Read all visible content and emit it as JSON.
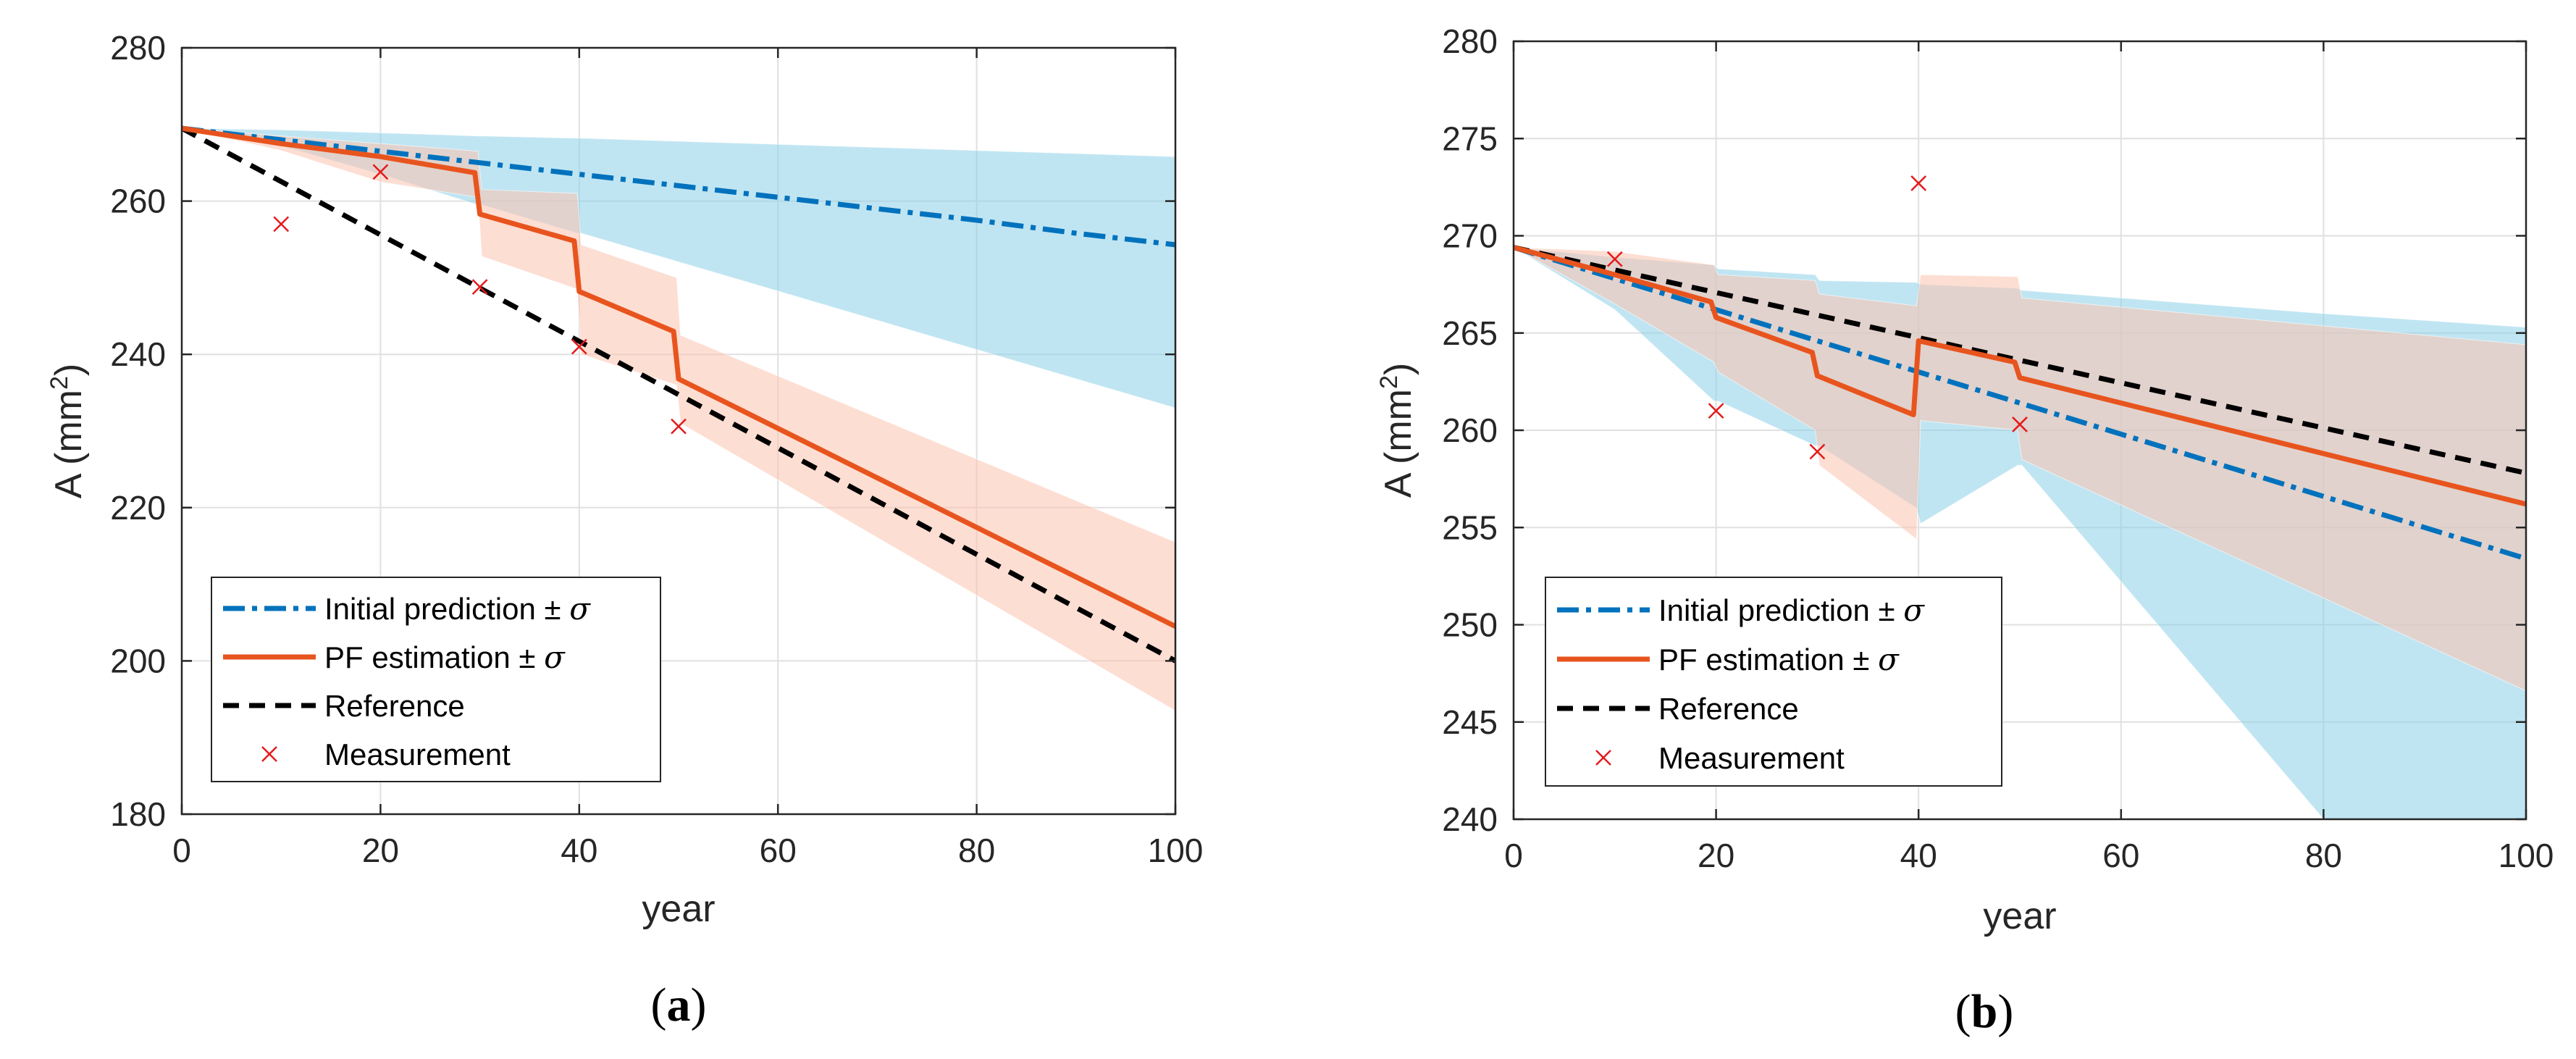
{
  "colors": {
    "initial": "#0072BD",
    "initial_band": "#8ccfe8",
    "pf": "#E8541E",
    "pf_band": "#fcc3ae",
    "reference": "#000000",
    "measurement": "#e41a1c",
    "grid": "#e0e0e0",
    "axis": "#262626"
  },
  "chart_data": [
    {
      "type": "line",
      "panel_caption_open": "(",
      "panel_caption_letter": "a",
      "panel_caption_close": ")",
      "xlabel": "year",
      "ylabel_base": "A (mm",
      "ylabel_sup": "2",
      "ylabel_close": ")",
      "xlim": [
        0,
        100
      ],
      "ylim": [
        180,
        280
      ],
      "xticks": [
        0,
        20,
        40,
        60,
        80,
        100
      ],
      "xtick_labels": [
        "0",
        "20",
        "40",
        "60",
        "80",
        "100"
      ],
      "yticks": [
        180,
        200,
        220,
        240,
        260,
        280
      ],
      "ytick_labels": [
        "180",
        "200",
        "220",
        "240",
        "260",
        "280"
      ],
      "grid": true,
      "legend_position": "bottom-left",
      "legend": [
        {
          "label": "Initial prediction ± ",
          "sym": "σ",
          "style": "dashdot"
        },
        {
          "label": "PF estimation ± ",
          "sym": "σ",
          "style": "solid"
        },
        {
          "label": "Reference",
          "sym": "",
          "style": "dashed"
        },
        {
          "label": "Measurement",
          "sym": "",
          "style": "marker"
        }
      ],
      "series": [
        {
          "name": "Initial prediction",
          "x": [
            0,
            10,
            20,
            30,
            40,
            50,
            60,
            70,
            80,
            90,
            100
          ],
          "y": [
            269.5,
            268,
            266.5,
            265,
            263.5,
            262,
            260.5,
            259,
            257.5,
            255.8,
            254.3
          ],
          "band_x": [
            0,
            10,
            20,
            29.8,
            30.2,
            39.8,
            40.2,
            100
          ],
          "band_upper": [
            269.5,
            269.3,
            268.9,
            268.5,
            268.5,
            268.2,
            268.2,
            265.8
          ],
          "band_lower": [
            269.5,
            267.2,
            263.5,
            259.5,
            259.5,
            255.8,
            255.8,
            233
          ]
        },
        {
          "name": "PF estimation",
          "x": [
            0,
            10,
            20,
            29.5,
            30,
            39.5,
            40,
            49.5,
            50,
            100
          ],
          "y": [
            269.5,
            267.5,
            265.8,
            263.7,
            258.3,
            254.8,
            248.2,
            243,
            236.8,
            204.5
          ],
          "band_x": [
            0,
            10,
            20,
            29.8,
            30.2,
            39.8,
            40.2,
            49.8,
            50.2,
            100
          ],
          "band_upper": [
            269.5,
            268.5,
            267.5,
            266.5,
            261.5,
            261,
            254.3,
            250,
            242.5,
            215.5
          ],
          "band_lower": [
            269.5,
            266.6,
            262.5,
            260.5,
            252.8,
            248.5,
            240,
            236,
            231,
            193.5
          ]
        },
        {
          "name": "Reference",
          "x": [
            0,
            100
          ],
          "y": [
            269.5,
            200
          ]
        }
      ],
      "measurements": {
        "x": [
          10,
          20,
          30,
          40,
          50
        ],
        "y": [
          257,
          263.8,
          248.8,
          241,
          230.6
        ]
      }
    },
    {
      "type": "line",
      "panel_caption_open": "(",
      "panel_caption_letter": "b",
      "panel_caption_close": ")",
      "xlabel": "year",
      "ylabel_base": "A (mm",
      "ylabel_sup": "2",
      "ylabel_close": ")",
      "xlim": [
        0,
        100
      ],
      "ylim": [
        240,
        280
      ],
      "xticks": [
        0,
        20,
        40,
        60,
        80,
        100
      ],
      "xtick_labels": [
        "0",
        "20",
        "40",
        "60",
        "80",
        "100"
      ],
      "yticks": [
        240,
        245,
        250,
        255,
        260,
        265,
        270,
        275,
        280
      ],
      "ytick_labels": [
        "240",
        "245",
        "250",
        "255",
        "260",
        "265",
        "270",
        "275",
        "280"
      ],
      "grid": true,
      "legend_position": "bottom-left",
      "legend": [
        {
          "label": "Initial prediction ± ",
          "sym": "σ",
          "style": "dashdot"
        },
        {
          "label": "PF estimation ± ",
          "sym": "σ",
          "style": "solid"
        },
        {
          "label": "Reference",
          "sym": "",
          "style": "dashed"
        },
        {
          "label": "Measurement",
          "sym": "",
          "style": "marker"
        }
      ],
      "series": [
        {
          "name": "Initial prediction",
          "x": [
            0,
            10,
            20,
            30,
            40,
            50,
            60,
            70,
            80,
            90,
            100
          ],
          "y": [
            269.4,
            267.8,
            266.2,
            264.6,
            263,
            261.4,
            259.8,
            258.2,
            256.6,
            255,
            253.4
          ],
          "band_x": [
            0,
            10,
            19.8,
            20.2,
            29.8,
            30.2,
            39.8,
            40.2,
            49.8,
            50.2,
            80,
            100
          ],
          "band_upper": [
            269.4,
            268.9,
            268.5,
            268.3,
            268,
            267.7,
            267.6,
            267.5,
            267.3,
            267.2,
            266,
            265.3
          ],
          "band_lower": [
            269.4,
            266.2,
            261.5,
            261.5,
            259.2,
            259.2,
            256,
            255.2,
            258.2,
            258.2,
            240,
            233
          ]
        },
        {
          "name": "PF estimation",
          "x": [
            0,
            10,
            19.5,
            20,
            29.5,
            30,
            39.5,
            40,
            49.5,
            50,
            100
          ],
          "y": [
            269.4,
            268,
            266.6,
            265.8,
            264,
            262.8,
            260.8,
            264.6,
            263.5,
            262.7,
            256.2
          ],
          "band_x": [
            0,
            10,
            19.8,
            20.2,
            29.8,
            30.2,
            39.8,
            40.2,
            49.8,
            50.2,
            100
          ],
          "band_upper": [
            269.4,
            269.2,
            268.5,
            268,
            267.7,
            267,
            266.4,
            268,
            267.9,
            266.8,
            264.4
          ],
          "band_lower": [
            269.4,
            266.5,
            263.5,
            263,
            260,
            258.2,
            254.4,
            260.5,
            260,
            258.5,
            246.6
          ]
        },
        {
          "name": "Reference",
          "x": [
            0,
            100
          ],
          "y": [
            269.4,
            257.8
          ]
        }
      ],
      "measurements": {
        "x": [
          10,
          20,
          30,
          40,
          50
        ],
        "y": [
          268.8,
          261,
          258.9,
          272.7,
          260.3
        ]
      }
    }
  ]
}
